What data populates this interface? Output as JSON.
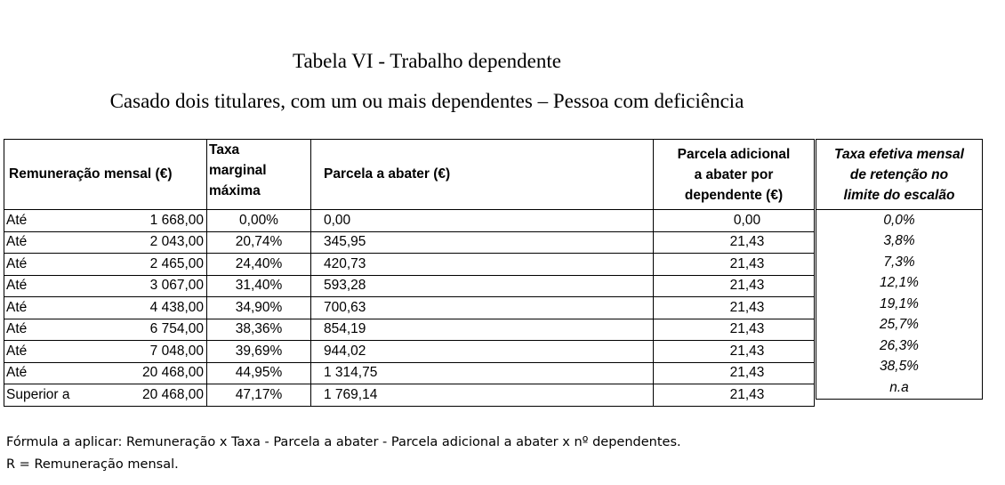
{
  "title": "Tabela VI - Trabalho dependente",
  "subtitle": "Casado dois titulares, com um ou mais dependentes – Pessoa com deficiência",
  "headers": {
    "remuneracao": "Remuneração mensal (€)",
    "taxa_l1": "Taxa",
    "taxa_l2": "marginal",
    "taxa_l3": "máxima",
    "parcela": "Parcela a abater (€)",
    "adicional_l1": "Parcela adicional",
    "adicional_l2": "a abater por",
    "adicional_l3": "dependente (€)",
    "efetiva_l1": "Taxa efetiva mensal",
    "efetiva_l2": "de retenção no",
    "efetiva_l3": "limite do escalão"
  },
  "rows": [
    {
      "label": "Até",
      "rem": "1 668,00",
      "taxa": "0,00%",
      "parcela": "0,00",
      "adicional": "0,00",
      "efetiva": "0,0%"
    },
    {
      "label": "Até",
      "rem": "2 043,00",
      "taxa": "20,74%",
      "parcela": "345,95",
      "adicional": "21,43",
      "efetiva": "3,8%"
    },
    {
      "label": "Até",
      "rem": "2 465,00",
      "taxa": "24,40%",
      "parcela": "420,73",
      "adicional": "21,43",
      "efetiva": "7,3%"
    },
    {
      "label": "Até",
      "rem": "3 067,00",
      "taxa": "31,40%",
      "parcela": "593,28",
      "adicional": "21,43",
      "efetiva": "12,1%"
    },
    {
      "label": "Até",
      "rem": "4 438,00",
      "taxa": "34,90%",
      "parcela": "700,63",
      "adicional": "21,43",
      "efetiva": "19,1%"
    },
    {
      "label": "Até",
      "rem": "6 754,00",
      "taxa": "38,36%",
      "parcela": "854,19",
      "adicional": "21,43",
      "efetiva": "25,7%"
    },
    {
      "label": "Até",
      "rem": "7 048,00",
      "taxa": "39,69%",
      "parcela": "944,02",
      "adicional": "21,43",
      "efetiva": "26,3%"
    },
    {
      "label": "Até",
      "rem": "20 468,00",
      "taxa": "44,95%",
      "parcela": "1 314,75",
      "adicional": "21,43",
      "efetiva": "38,5%"
    },
    {
      "label": "Superior a",
      "rem": "20 468,00",
      "taxa": "47,17%",
      "parcela": "1 769,14",
      "adicional": "21,43",
      "efetiva": "n.a"
    }
  ],
  "notes": {
    "formula": "Fórmula a aplicar: Remuneração x Taxa - Parcela a abater - Parcela adicional a abater x nº dependentes.",
    "legend": "R = Remuneração mensal."
  }
}
